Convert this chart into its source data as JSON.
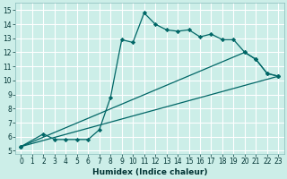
{
  "xlabel": "Humidex (Indice chaleur)",
  "bg_color": "#cceee8",
  "line_color": "#006666",
  "grid_color": "#ffffff",
  "xlim": [
    -0.5,
    23.5
  ],
  "ylim": [
    4.8,
    15.5
  ],
  "xticks": [
    0,
    1,
    2,
    3,
    4,
    5,
    6,
    7,
    8,
    9,
    10,
    11,
    12,
    13,
    14,
    15,
    16,
    17,
    18,
    19,
    20,
    21,
    22,
    23
  ],
  "yticks": [
    5,
    6,
    7,
    8,
    9,
    10,
    11,
    12,
    13,
    14,
    15
  ],
  "series1_x": [
    0,
    2,
    3,
    4,
    5,
    6,
    7,
    8,
    9,
    10,
    11,
    12,
    13,
    14,
    15,
    16,
    17,
    18,
    19,
    20,
    21,
    22,
    23
  ],
  "series1_y": [
    5.3,
    6.2,
    5.8,
    5.8,
    5.8,
    5.8,
    6.5,
    8.8,
    12.9,
    12.7,
    14.8,
    14.0,
    13.6,
    13.5,
    13.6,
    13.1,
    13.3,
    12.9,
    12.9,
    12.0,
    11.5,
    10.5,
    10.3
  ],
  "series2_x": [
    0,
    23
  ],
  "series2_y": [
    5.3,
    10.3
  ],
  "series3_x": [
    0,
    20,
    21,
    22,
    23
  ],
  "series3_y": [
    5.3,
    12.0,
    11.5,
    10.5,
    10.3
  ],
  "tick_fontsize": 5.5,
  "xlabel_fontsize": 6.5
}
